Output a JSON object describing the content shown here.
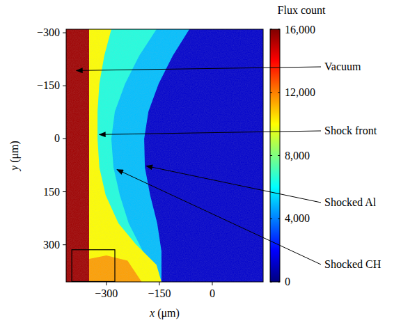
{
  "chart_data": {
    "type": "heatmap",
    "xlabel": "x (μm)",
    "ylabel": "y (μm)",
    "xlim": [
      -414,
      144
    ],
    "ylim": [
      -310,
      405
    ],
    "xticks": [
      {
        "value": -300,
        "label": "−300"
      },
      {
        "value": -150,
        "label": "−150"
      },
      0
    ],
    "yticks": [
      {
        "value": -300,
        "label": "−300"
      },
      {
        "value": -150,
        "label": "−150"
      },
      0,
      150,
      300
    ],
    "colorbar": {
      "title": "Flux count",
      "range": [
        0,
        16000
      ],
      "ticks": [
        0,
        {
          "value": 4000,
          "label": "4,000"
        },
        {
          "value": 8000,
          "label": "8,000"
        },
        {
          "value": 12000,
          "label": "12,000"
        },
        {
          "value": 16000,
          "label": "16,000"
        }
      ]
    },
    "regions": [
      {
        "flux": 1200,
        "boundary": [
          [
            -414,
            -310
          ],
          [
            144,
            -310
          ],
          [
            144,
            405
          ],
          [
            -414,
            405
          ]
        ]
      },
      {
        "flux": 5000,
        "boundary": [
          [
            -414,
            -310
          ],
          [
            -65,
            -310
          ],
          [
            -112,
            -235
          ],
          [
            -152,
            -156
          ],
          [
            -181,
            -77
          ],
          [
            -193,
            0
          ],
          [
            -191,
            81
          ],
          [
            -176,
            160
          ],
          [
            -156,
            239
          ],
          [
            -144,
            318
          ],
          [
            -144,
            405
          ],
          [
            -414,
            405
          ]
        ]
      },
      {
        "flux": 6500,
        "boundary": [
          [
            -414,
            -310
          ],
          [
            -158,
            -310
          ],
          [
            -207,
            -235
          ],
          [
            -247,
            -156
          ],
          [
            -276,
            -77
          ],
          [
            -286,
            0
          ],
          [
            -280,
            81
          ],
          [
            -262,
            160
          ],
          [
            -237,
            239
          ],
          [
            -197,
            318
          ],
          [
            -168,
            357
          ],
          [
            -144,
            405
          ],
          [
            -414,
            405
          ]
        ]
      },
      {
        "flux": 10000,
        "boundary": [
          [
            -414,
            -310
          ],
          [
            -286,
            -310
          ],
          [
            -306,
            -235
          ],
          [
            -320,
            -156
          ],
          [
            -325,
            -77
          ],
          [
            -325,
            0
          ],
          [
            -320,
            81
          ],
          [
            -302,
            160
          ],
          [
            -266,
            239
          ],
          [
            -217,
            298
          ],
          [
            -158,
            357
          ],
          [
            -144,
            405
          ],
          [
            -414,
            405
          ]
        ]
      },
      {
        "flux": 11500,
        "boundary": [
          [
            -349,
            340
          ],
          [
            -300,
            330
          ],
          [
            -240,
            345
          ],
          [
            -200,
            405
          ],
          [
            -349,
            405
          ]
        ]
      },
      {
        "flux": 15500,
        "boundary": [
          [
            -414,
            -310
          ],
          [
            -349,
            -310
          ],
          [
            -349,
            405
          ],
          [
            -414,
            405
          ]
        ]
      }
    ],
    "highlight_box": {
      "x": [
        -398,
        -276
      ],
      "y": [
        314,
        404
      ]
    },
    "annotations": [
      {
        "text": "Vacuum",
        "x": -385,
        "y": -193
      },
      {
        "text": "Shock front",
        "x": -320,
        "y": -12
      },
      {
        "text": "Shocked Al",
        "x": -187,
        "y": 77
      },
      {
        "text": "Shocked CH",
        "x": -270,
        "y": 87
      }
    ]
  }
}
